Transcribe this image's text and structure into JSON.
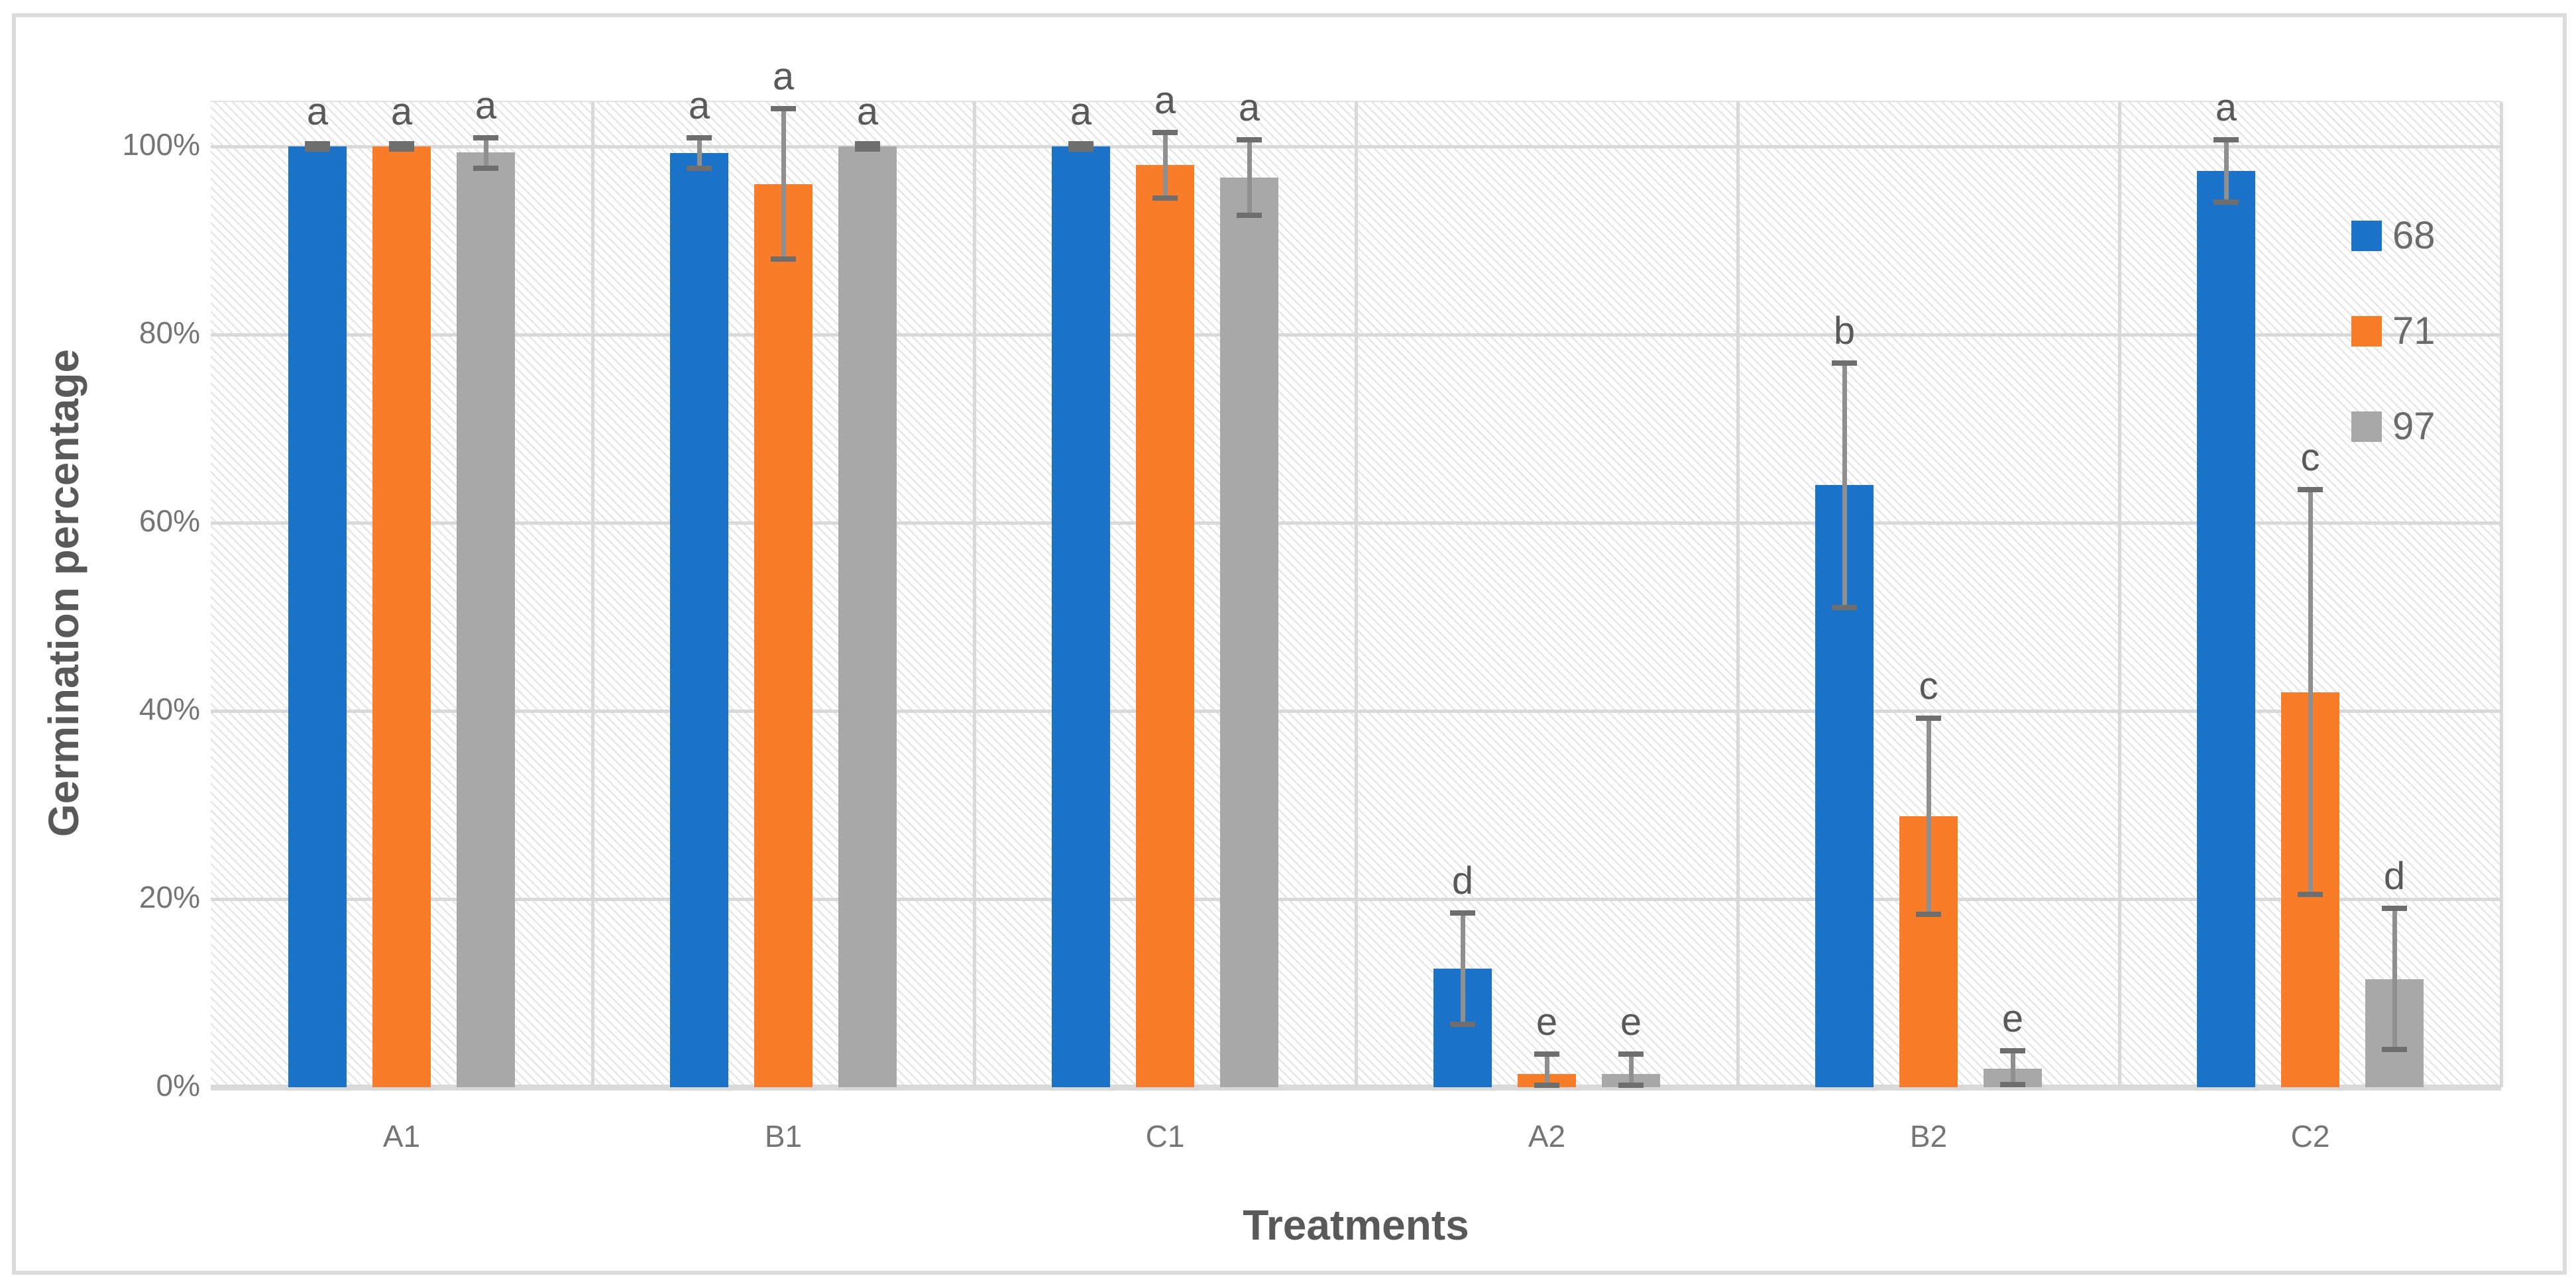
{
  "figure": {
    "y_axis_title": "Germination percentage",
    "x_axis_title": "Treatments",
    "y_tick_labels": [
      "0%",
      "20%",
      "40%",
      "60%",
      "80%",
      "100%"
    ],
    "colors": {
      "series_blue": "#1B73C9",
      "series_orange": "#F97D28",
      "series_gray": "#A8A8A8",
      "gridline": "#d9d9d9",
      "error_bar_line": "#8f8f8f",
      "error_bar_cap": "#6e6e6e",
      "tick_text": "#757575",
      "title_text": "#595959",
      "frame_border": "#dcdcdc"
    }
  },
  "chart_data": {
    "type": "bar",
    "title": "",
    "xlabel": "Treatments",
    "ylabel": "Germination percentage",
    "ylim": [
      0,
      104.7
    ],
    "y_ticks_percent": [
      0,
      20,
      40,
      60,
      80,
      100
    ],
    "grid": "on",
    "legend_position": "right-inside",
    "background_pattern": "diagonal-hatch",
    "categories": [
      "A1",
      "B1",
      "C1",
      "A2",
      "B2",
      "C2"
    ],
    "series": [
      {
        "name": "68",
        "color": "#1B73C9",
        "values": [
          100,
          99.3,
          100,
          12.6,
          64,
          97.4
        ],
        "err_low": [
          99.7,
          97.7,
          99.7,
          6.7,
          51,
          94.1
        ],
        "err_high": [
          100.3,
          100.9,
          100.3,
          18.5,
          77,
          100.7
        ],
        "letters": [
          "a",
          "a",
          "a",
          "d",
          "b",
          "a"
        ]
      },
      {
        "name": "71",
        "color": "#F97D28",
        "values": [
          100,
          96,
          98,
          1.4,
          28.8,
          42
        ],
        "err_low": [
          99.7,
          88,
          94.5,
          0.2,
          18.4,
          20.5
        ],
        "err_high": [
          100.3,
          104,
          101.5,
          3.5,
          39.2,
          63.5
        ],
        "letters": [
          "a",
          "a",
          "a",
          "e",
          "c",
          "c"
        ]
      },
      {
        "name": "97",
        "color": "#A8A8A8",
        "values": [
          99.4,
          100,
          96.7,
          1.4,
          2,
          11.5
        ],
        "err_low": [
          97.7,
          99.7,
          92.7,
          0.2,
          0.3,
          4
        ],
        "err_high": [
          100.9,
          100.3,
          100.7,
          3.5,
          3.9,
          19
        ],
        "letters": [
          "a",
          "a",
          "a",
          "e",
          "e",
          "d"
        ]
      }
    ]
  }
}
